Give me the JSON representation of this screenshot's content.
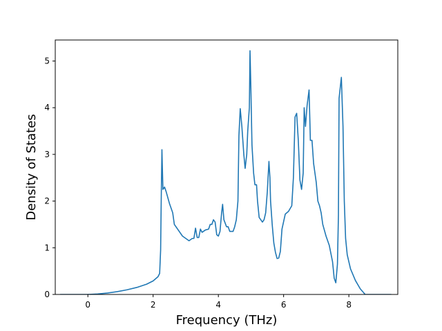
{
  "chart_data": {
    "type": "line",
    "title": "",
    "xlabel": "Frequency (THz)",
    "ylabel": "Density of States",
    "xlim": [
      -1.0,
      9.5
    ],
    "ylim": [
      0,
      5.45
    ],
    "xticks": [
      0,
      2,
      4,
      6,
      8
    ],
    "yticks": [
      0,
      1,
      2,
      3,
      4,
      5
    ],
    "grid": false,
    "legend": "none",
    "colors": {
      "line": "#1f77b4",
      "axes": "#000000"
    },
    "series": [
      {
        "points": [
          [
            -0.85,
            0.0
          ],
          [
            -0.5,
            0.0
          ],
          [
            0.0,
            0.0
          ],
          [
            0.3,
            0.01
          ],
          [
            0.6,
            0.03
          ],
          [
            0.9,
            0.06
          ],
          [
            1.2,
            0.1
          ],
          [
            1.5,
            0.15
          ],
          [
            1.8,
            0.22
          ],
          [
            2.0,
            0.29
          ],
          [
            2.15,
            0.38
          ],
          [
            2.2,
            0.45
          ],
          [
            2.23,
            0.95
          ],
          [
            2.25,
            2.1
          ],
          [
            2.27,
            3.1
          ],
          [
            2.3,
            2.25
          ],
          [
            2.35,
            2.3
          ],
          [
            2.4,
            2.2
          ],
          [
            2.5,
            1.95
          ],
          [
            2.6,
            1.75
          ],
          [
            2.65,
            1.5
          ],
          [
            2.75,
            1.4
          ],
          [
            2.9,
            1.25
          ],
          [
            3.0,
            1.2
          ],
          [
            3.1,
            1.15
          ],
          [
            3.2,
            1.2
          ],
          [
            3.25,
            1.2
          ],
          [
            3.3,
            1.42
          ],
          [
            3.35,
            1.22
          ],
          [
            3.4,
            1.22
          ],
          [
            3.45,
            1.4
          ],
          [
            3.5,
            1.33
          ],
          [
            3.6,
            1.38
          ],
          [
            3.7,
            1.4
          ],
          [
            3.75,
            1.5
          ],
          [
            3.8,
            1.5
          ],
          [
            3.85,
            1.6
          ],
          [
            3.9,
            1.55
          ],
          [
            3.95,
            1.28
          ],
          [
            4.0,
            1.25
          ],
          [
            4.05,
            1.35
          ],
          [
            4.1,
            1.75
          ],
          [
            4.13,
            1.93
          ],
          [
            4.17,
            1.6
          ],
          [
            4.25,
            1.45
          ],
          [
            4.3,
            1.45
          ],
          [
            4.35,
            1.35
          ],
          [
            4.45,
            1.35
          ],
          [
            4.5,
            1.45
          ],
          [
            4.55,
            1.6
          ],
          [
            4.6,
            2.0
          ],
          [
            4.63,
            3.4
          ],
          [
            4.67,
            3.98
          ],
          [
            4.72,
            3.6
          ],
          [
            4.78,
            3.0
          ],
          [
            4.82,
            2.7
          ],
          [
            4.87,
            3.0
          ],
          [
            4.9,
            3.5
          ],
          [
            4.95,
            4.0
          ],
          [
            4.97,
            5.22
          ],
          [
            5.0,
            4.3
          ],
          [
            5.03,
            3.2
          ],
          [
            5.08,
            2.6
          ],
          [
            5.12,
            2.35
          ],
          [
            5.17,
            2.35
          ],
          [
            5.2,
            2.0
          ],
          [
            5.25,
            1.65
          ],
          [
            5.35,
            1.55
          ],
          [
            5.4,
            1.6
          ],
          [
            5.45,
            1.75
          ],
          [
            5.5,
            2.2
          ],
          [
            5.55,
            2.85
          ],
          [
            5.58,
            2.5
          ],
          [
            5.6,
            2.0
          ],
          [
            5.65,
            1.5
          ],
          [
            5.7,
            1.1
          ],
          [
            5.75,
            0.9
          ],
          [
            5.8,
            0.77
          ],
          [
            5.85,
            0.78
          ],
          [
            5.9,
            0.92
          ],
          [
            5.95,
            1.4
          ],
          [
            6.05,
            1.72
          ],
          [
            6.15,
            1.78
          ],
          [
            6.25,
            1.9
          ],
          [
            6.3,
            2.5
          ],
          [
            6.35,
            3.8
          ],
          [
            6.4,
            3.88
          ],
          [
            6.45,
            3.3
          ],
          [
            6.5,
            2.45
          ],
          [
            6.55,
            2.25
          ],
          [
            6.6,
            2.6
          ],
          [
            6.63,
            4.0
          ],
          [
            6.67,
            3.6
          ],
          [
            6.72,
            4.05
          ],
          [
            6.78,
            4.38
          ],
          [
            6.82,
            3.3
          ],
          [
            6.87,
            3.3
          ],
          [
            6.92,
            2.8
          ],
          [
            7.0,
            2.4
          ],
          [
            7.05,
            2.0
          ],
          [
            7.1,
            1.9
          ],
          [
            7.15,
            1.75
          ],
          [
            7.2,
            1.5
          ],
          [
            7.3,
            1.25
          ],
          [
            7.4,
            1.05
          ],
          [
            7.5,
            0.7
          ],
          [
            7.55,
            0.35
          ],
          [
            7.6,
            0.25
          ],
          [
            7.65,
            0.65
          ],
          [
            7.68,
            1.7
          ],
          [
            7.7,
            4.2
          ],
          [
            7.77,
            4.65
          ],
          [
            7.82,
            3.6
          ],
          [
            7.86,
            2.0
          ],
          [
            7.9,
            1.2
          ],
          [
            7.95,
            0.85
          ],
          [
            8.05,
            0.55
          ],
          [
            8.2,
            0.3
          ],
          [
            8.35,
            0.12
          ],
          [
            8.5,
            0.0
          ],
          [
            8.7,
            0.0
          ],
          [
            9.0,
            0.0
          ],
          [
            9.3,
            0.0
          ]
        ]
      }
    ]
  }
}
